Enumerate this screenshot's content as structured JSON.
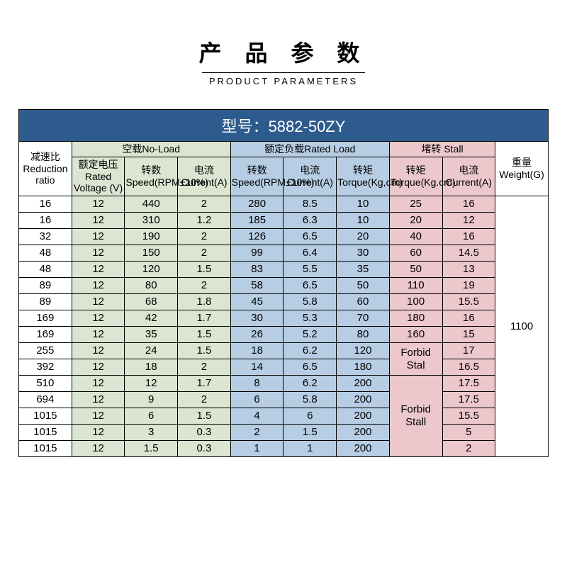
{
  "title_cn": "产 品 参 数",
  "title_en": "PRODUCT PARAMETERS",
  "model_label": "型号：5882-50ZY",
  "sections": {
    "noload": "空载No-Load",
    "rated": "额定负载Rated Load",
    "stall": "堵转 Stall"
  },
  "headers": {
    "ratio": "减速比Reduction ratio",
    "voltage": "额定电压Rated Voltage (V)",
    "nl_speed": "转数Speed(RPM±10%)",
    "nl_current": "电流Current(A)",
    "r_speed": "转数Speed(RPM±10%)",
    "r_current": "电流Current(A)",
    "r_torque": "转矩Torque(Kg,cm)",
    "s_torque": "转矩Torque(Kg.cm)",
    "s_current": "电流Current(A)",
    "weight": "重量Weight(G)"
  },
  "weight_value": "1100",
  "forbid1": "Forbid Stal",
  "forbid2": "Forbid Stall",
  "rows": [
    {
      "ratio": "16",
      "v": "12",
      "nls": "440",
      "nlc": "2",
      "rs": "280",
      "rc": "8.5",
      "rt": "10",
      "st": "25",
      "sc": "16"
    },
    {
      "ratio": "16",
      "v": "12",
      "nls": "310",
      "nlc": "1.2",
      "rs": "185",
      "rc": "6.3",
      "rt": "10",
      "st": "20",
      "sc": "12"
    },
    {
      "ratio": "32",
      "v": "12",
      "nls": "190",
      "nlc": "2",
      "rs": "126",
      "rc": "6.5",
      "rt": "20",
      "st": "40",
      "sc": "16"
    },
    {
      "ratio": "48",
      "v": "12",
      "nls": "150",
      "nlc": "2",
      "rs": "99",
      "rc": "6.4",
      "rt": "30",
      "st": "60",
      "sc": "14.5"
    },
    {
      "ratio": "48",
      "v": "12",
      "nls": "120",
      "nlc": "1.5",
      "rs": "83",
      "rc": "5.5",
      "rt": "35",
      "st": "50",
      "sc": "13"
    },
    {
      "ratio": "89",
      "v": "12",
      "nls": "80",
      "nlc": "2",
      "rs": "58",
      "rc": "6.5",
      "rt": "50",
      "st": "110",
      "sc": "19"
    },
    {
      "ratio": "89",
      "v": "12",
      "nls": "68",
      "nlc": "1.8",
      "rs": "45",
      "rc": "5.8",
      "rt": "60",
      "st": "100",
      "sc": "15.5"
    },
    {
      "ratio": "169",
      "v": "12",
      "nls": "42",
      "nlc": "1.7",
      "rs": "30",
      "rc": "5.3",
      "rt": "70",
      "st": "180",
      "sc": "16"
    },
    {
      "ratio": "169",
      "v": "12",
      "nls": "35",
      "nlc": "1.5",
      "rs": "26",
      "rc": "5.2",
      "rt": "80",
      "st": "160",
      "sc": "15"
    },
    {
      "ratio": "255",
      "v": "12",
      "nls": "24",
      "nlc": "1.5",
      "rs": "18",
      "rc": "6.2",
      "rt": "120",
      "st": "",
      "sc": "17"
    },
    {
      "ratio": "392",
      "v": "12",
      "nls": "18",
      "nlc": "2",
      "rs": "14",
      "rc": "6.5",
      "rt": "180",
      "st": "",
      "sc": "16.5"
    },
    {
      "ratio": "510",
      "v": "12",
      "nls": "12",
      "nlc": "1.7",
      "rs": "8",
      "rc": "6.2",
      "rt": "200",
      "st": "",
      "sc": "17.5"
    },
    {
      "ratio": "694",
      "v": "12",
      "nls": "9",
      "nlc": "2",
      "rs": "6",
      "rc": "5.8",
      "rt": "200",
      "st": "",
      "sc": "17.5"
    },
    {
      "ratio": "1015",
      "v": "12",
      "nls": "6",
      "nlc": "1.5",
      "rs": "4",
      "rc": "6",
      "rt": "200",
      "st": "",
      "sc": "15.5"
    },
    {
      "ratio": "1015",
      "v": "12",
      "nls": "3",
      "nlc": "0.3",
      "rs": "2",
      "rc": "1.5",
      "rt": "200",
      "st": "",
      "sc": "5"
    },
    {
      "ratio": "1015",
      "v": "12",
      "nls": "1.5",
      "nlc": "0.3",
      "rs": "1",
      "rc": "1",
      "rt": "200",
      "st": "",
      "sc": "2"
    }
  ],
  "colors": {
    "model_bar_bg": "#2e5b8d",
    "noload_bg": "#dbe5d1",
    "rated_bg": "#b6cde4",
    "stall_bg": "#ecc7cb",
    "border": "#000000",
    "page_bg": "#ffffff"
  }
}
